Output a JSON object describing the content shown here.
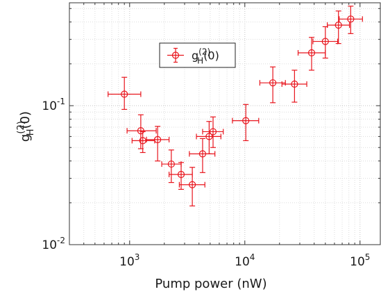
{
  "chart_data": {
    "type": "scatter",
    "xscale": "log",
    "yscale": "log",
    "xlim": [
      300,
      150000
    ],
    "ylim": [
      0.01,
      0.55
    ],
    "grid": true,
    "grid_style": "dotted",
    "legend_placement": "top-center",
    "xlabel": "Pump power (nW)",
    "ylabel": {
      "base": "g",
      "sup": "(2)",
      "sub": "H",
      "suffix": "(0)"
    },
    "x_ticks": [
      {
        "value": 1000,
        "base": "10",
        "exp": "3"
      },
      {
        "value": 10000,
        "base": "10",
        "exp": "4"
      },
      {
        "value": 100000,
        "base": "10",
        "exp": "5"
      }
    ],
    "y_ticks": [
      {
        "value": 0.01,
        "base": "10",
        "exp": "-2"
      },
      {
        "value": 0.1,
        "base": "10",
        "exp": "-1"
      }
    ],
    "series": [
      {
        "name": {
          "base": "g",
          "sup": "(2)",
          "sub": "H",
          "suffix": "(0)"
        },
        "color": "#e8141c",
        "marker": "open-circle",
        "points": [
          {
            "x": 900,
            "y": 0.121,
            "xerr": [
              650,
              1250
            ],
            "yerr": [
              0.094,
              0.16
            ]
          },
          {
            "x": 1250,
            "y": 0.066,
            "xerr": [
              950,
              1700
            ],
            "yerr": [
              0.049,
              0.086
            ]
          },
          {
            "x": 1300,
            "y": 0.056,
            "xerr": [
              1050,
              1650
            ],
            "yerr": [
              0.046,
              0.065
            ]
          },
          {
            "x": 1750,
            "y": 0.057,
            "xerr": [
              1400,
              2200
            ],
            "yerr": [
              0.04,
              0.071
            ]
          },
          {
            "x": 2300,
            "y": 0.038,
            "xerr": [
              1900,
              2800
            ],
            "yerr": [
              0.028,
              0.048
            ]
          },
          {
            "x": 2800,
            "y": 0.032,
            "xerr": [
              2200,
              3500
            ],
            "yerr": [
              0.025,
              0.039
            ]
          },
          {
            "x": 3500,
            "y": 0.027,
            "xerr": [
              2700,
              4500
            ],
            "yerr": [
              0.019,
              0.036
            ]
          },
          {
            "x": 4300,
            "y": 0.045,
            "xerr": [
              3300,
              5500
            ],
            "yerr": [
              0.033,
              0.058
            ]
          },
          {
            "x": 4900,
            "y": 0.06,
            "xerr": [
              3800,
              6200
            ],
            "yerr": [
              0.045,
              0.077
            ]
          },
          {
            "x": 5300,
            "y": 0.065,
            "xerr": [
              4300,
              6500
            ],
            "yerr": [
              0.05,
              0.083
            ]
          },
          {
            "x": 10200,
            "y": 0.078,
            "xerr": [
              7800,
              13200
            ],
            "yerr": [
              0.056,
              0.102
            ]
          },
          {
            "x": 17500,
            "y": 0.146,
            "xerr": [
              13500,
              22500
            ],
            "yerr": [
              0.105,
              0.19
            ]
          },
          {
            "x": 27000,
            "y": 0.143,
            "xerr": [
              21000,
              34500
            ],
            "yerr": [
              0.106,
              0.18
            ]
          },
          {
            "x": 38000,
            "y": 0.24,
            "xerr": [
              29000,
              50000
            ],
            "yerr": [
              0.18,
              0.31
            ]
          },
          {
            "x": 50000,
            "y": 0.29,
            "xerr": [
              39000,
              64000
            ],
            "yerr": [
              0.22,
              0.37
            ]
          },
          {
            "x": 65000,
            "y": 0.38,
            "xerr": [
              52000,
              81000
            ],
            "yerr": [
              0.28,
              0.48
            ]
          },
          {
            "x": 83000,
            "y": 0.42,
            "xerr": [
              66000,
              105000
            ],
            "yerr": [
              0.33,
              0.52
            ]
          }
        ]
      }
    ]
  }
}
